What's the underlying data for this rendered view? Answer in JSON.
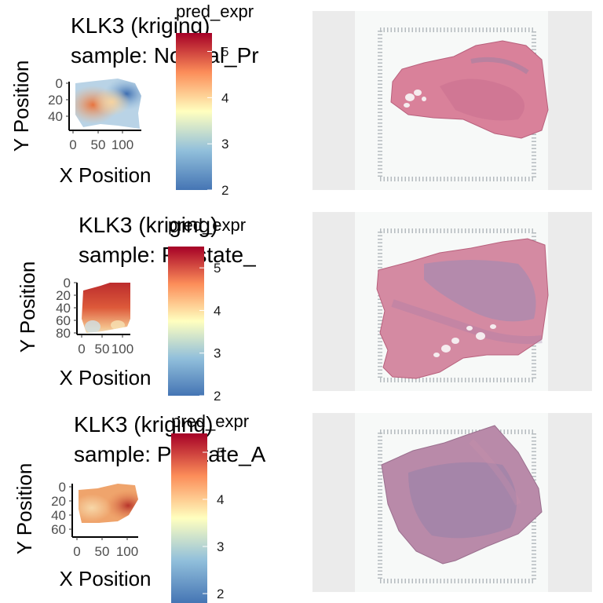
{
  "chart_data": [
    {
      "type": "heatmap",
      "title_line1": "KLK3 (kriging)",
      "title_line2": "sample: Normal_Pr",
      "xlabel": "X Position",
      "ylabel": "Y Position",
      "xticks": [
        "0",
        "50",
        "100"
      ],
      "yticks": [
        "0",
        "20",
        "40"
      ],
      "legend_title": "pred_expr",
      "legend_ticks": [
        "5",
        "4",
        "3",
        "2"
      ],
      "legend_range": [
        2,
        5.4
      ],
      "colors": {
        "low": "#4575b4",
        "mid": "#ffffbf",
        "high": "#a50026"
      }
    },
    {
      "type": "heatmap",
      "title_line1": "KLK3 (kriging)",
      "title_line2": "sample: Prostate_",
      "xlabel": "X Position",
      "ylabel": "Y Position",
      "xticks": [
        "0",
        "50",
        "100"
      ],
      "yticks": [
        "0",
        "20",
        "40",
        "60",
        "80"
      ],
      "legend_title": "pred_expr",
      "legend_ticks": [
        "5",
        "4",
        "3",
        "2"
      ],
      "legend_range": [
        2,
        5.5
      ],
      "colors": {
        "low": "#4575b4",
        "mid": "#ffffbf",
        "high": "#a50026"
      }
    },
    {
      "type": "heatmap",
      "title_line1": "KLK3 (kriging)",
      "title_line2": "sample: Prostate_A",
      "xlabel": "X Position",
      "ylabel": "Y Position",
      "xticks": [
        "0",
        "50",
        "100"
      ],
      "yticks": [
        "0",
        "20",
        "40",
        "60"
      ],
      "legend_title": "pred_expr",
      "legend_ticks": [
        "5",
        "4",
        "3",
        "2"
      ],
      "legend_range": [
        1.8,
        5.4
      ],
      "colors": {
        "low": "#4575b4",
        "mid": "#ffffbf",
        "high": "#a50026"
      }
    }
  ]
}
